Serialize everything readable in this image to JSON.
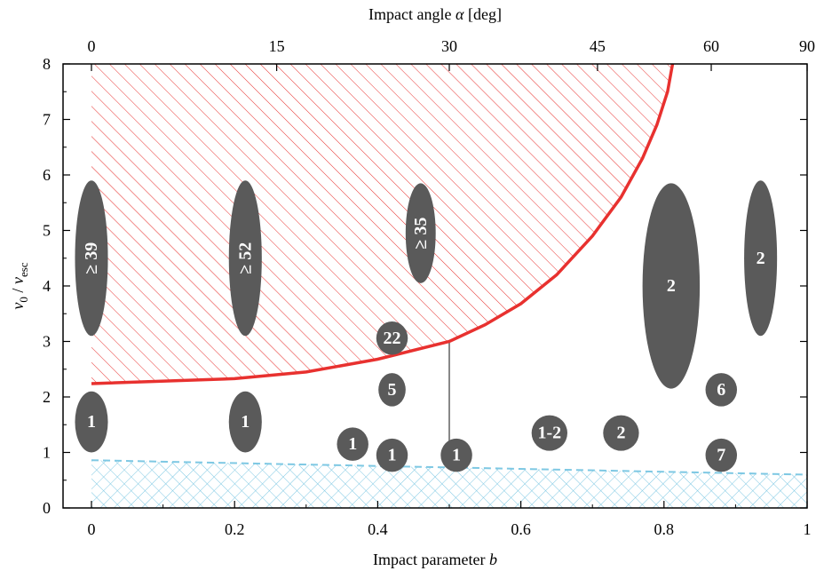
{
  "chart_data": {
    "type": "scatter",
    "xlabel": "Impact parameter",
    "xlabel_var": "b",
    "ylabel": "v0 / vesc",
    "top_xlabel": "Impact angle α [deg]",
    "top_xlabel_text": "Impact angle",
    "top_xlabel_var": "α",
    "top_xlabel_unit": "[deg]",
    "xlim": [
      0,
      1
    ],
    "ylim": [
      0,
      8
    ],
    "x_ticks": [
      0,
      0.2,
      0.4,
      0.6,
      0.8,
      1
    ],
    "x_tick_labels": [
      "0",
      "0.2",
      "0.4",
      "0.6",
      "0.8",
      "1"
    ],
    "y_ticks": [
      0,
      1,
      2,
      3,
      4,
      5,
      6,
      7,
      8
    ],
    "y_tick_labels": [
      "0",
      "1",
      "2",
      "3",
      "4",
      "5",
      "6",
      "7",
      "8"
    ],
    "top_ticks_deg": [
      0,
      15,
      30,
      45,
      60,
      90
    ],
    "top_tick_labels": [
      "0",
      "15",
      "30",
      "45",
      "60",
      "90"
    ],
    "grid": false,
    "series": [
      {
        "kind": "curve",
        "color": "#e8312f",
        "points": [
          [
            0,
            2.24
          ],
          [
            0.2,
            2.33
          ],
          [
            0.3,
            2.45
          ],
          [
            0.4,
            2.68
          ],
          [
            0.5,
            3.0
          ],
          [
            0.55,
            3.3
          ],
          [
            0.6,
            3.68
          ],
          [
            0.65,
            4.2
          ],
          [
            0.7,
            4.9
          ],
          [
            0.74,
            5.6
          ],
          [
            0.77,
            6.3
          ],
          [
            0.79,
            6.9
          ],
          [
            0.805,
            7.5
          ],
          [
            0.812,
            8.0
          ]
        ],
        "fill": "hatched-above",
        "fill_color": "#e8312f"
      },
      {
        "kind": "dashed-curve",
        "color": "#7ec8e3",
        "points": [
          [
            0,
            0.86
          ],
          [
            0.5,
            0.73
          ],
          [
            1,
            0.6
          ]
        ],
        "fill": "crosshatch-below",
        "fill_color": "#7ec8e3"
      },
      {
        "kind": "vline",
        "color": "#888888",
        "x": 0.5,
        "y_from": 1.2,
        "y_to": 3.0
      }
    ],
    "markers": [
      {
        "x": 0.0,
        "y": 4.5,
        "rx": 0.023,
        "ry": 1.4,
        "label": "≥ 39",
        "rotated": true
      },
      {
        "x": 0.215,
        "y": 4.5,
        "rx": 0.023,
        "ry": 1.4,
        "label": "≥ 52",
        "rotated": true
      },
      {
        "x": 0.46,
        "y": 4.95,
        "rx": 0.021,
        "ry": 0.9,
        "label": "≥ 35",
        "rotated": true
      },
      {
        "x": 0.81,
        "y": 4.0,
        "rx": 0.04,
        "ry": 1.85,
        "label": "2",
        "rotated": false
      },
      {
        "x": 0.935,
        "y": 4.5,
        "rx": 0.023,
        "ry": 1.4,
        "label": "2",
        "rotated": false
      },
      {
        "x": 0.0,
        "y": 1.55,
        "rx": 0.023,
        "ry": 0.55,
        "label": "1",
        "rotated": false
      },
      {
        "x": 0.215,
        "y": 1.55,
        "rx": 0.023,
        "ry": 0.55,
        "label": "1",
        "rotated": false
      },
      {
        "x": 0.42,
        "y": 3.06,
        "rx": 0.022,
        "ry": 0.3,
        "label": "22",
        "rotated": false
      },
      {
        "x": 0.42,
        "y": 2.13,
        "rx": 0.019,
        "ry": 0.3,
        "label": "5",
        "rotated": false
      },
      {
        "x": 0.365,
        "y": 1.15,
        "rx": 0.022,
        "ry": 0.3,
        "label": "1",
        "rotated": false
      },
      {
        "x": 0.42,
        "y": 0.95,
        "rx": 0.022,
        "ry": 0.3,
        "label": "1",
        "rotated": false
      },
      {
        "x": 0.51,
        "y": 0.95,
        "rx": 0.022,
        "ry": 0.3,
        "label": "1",
        "rotated": false
      },
      {
        "x": 0.64,
        "y": 1.35,
        "rx": 0.025,
        "ry": 0.32,
        "label": "1-2",
        "rotated": false
      },
      {
        "x": 0.74,
        "y": 1.35,
        "rx": 0.025,
        "ry": 0.32,
        "label": "2",
        "rotated": false
      },
      {
        "x": 0.88,
        "y": 2.13,
        "rx": 0.022,
        "ry": 0.3,
        "label": "6",
        "rotated": false
      },
      {
        "x": 0.88,
        "y": 0.95,
        "rx": 0.022,
        "ry": 0.3,
        "label": "7",
        "rotated": false
      }
    ],
    "marker_color": "#5a5a5a"
  }
}
